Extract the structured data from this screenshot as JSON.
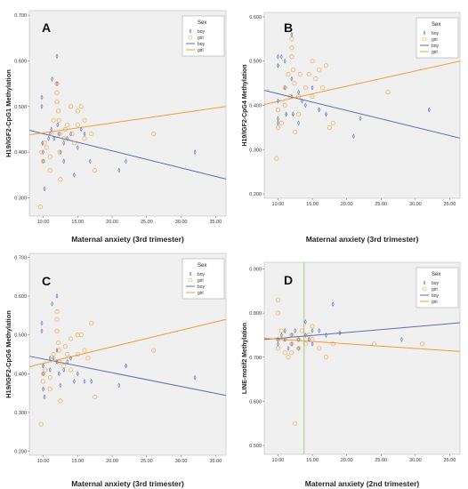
{
  "colors": {
    "boy": "#5a6fb0",
    "girl": "#f39c3a",
    "reference_line": "#8fd16b",
    "plot_background": "#f0f0f0"
  },
  "legend": {
    "title": "Sex",
    "entries": [
      {
        "label": "boy",
        "kind": "marker",
        "series": "boy"
      },
      {
        "label": "girl",
        "kind": "marker",
        "series": "girl"
      },
      {
        "label": "boy",
        "kind": "line",
        "series": "boy"
      },
      {
        "label": "girl",
        "kind": "line",
        "series": "girl"
      }
    ]
  },
  "chart_data": [
    {
      "type": "scatter",
      "panel": "A",
      "ylabel": "H19/IGF2-CpG1 Methylation",
      "xlabel": "Maternal anxiety (3rd trimester)",
      "xlim": [
        8.0,
        36.5
      ],
      "ylim": [
        0.26,
        0.71
      ],
      "xticks": [
        "10.00",
        "15.00",
        "20.00",
        "25.00",
        "30.00",
        "35.00"
      ],
      "yticks": [
        "0.300",
        "0.400",
        "0.500",
        "0.600",
        "0.700"
      ],
      "legend_position": "top-right",
      "series": [
        {
          "name": "boy",
          "points": [
            [
              9.8,
              0.52
            ],
            [
              9.8,
              0.5
            ],
            [
              9.9,
              0.42
            ],
            [
              10,
              0.4
            ],
            [
              10,
              0.38
            ],
            [
              10.2,
              0.32
            ],
            [
              10.8,
              0.43
            ],
            [
              11,
              0.44
            ],
            [
              11.2,
              0.45
            ],
            [
              11.3,
              0.56
            ],
            [
              11.6,
              0.43
            ],
            [
              12,
              0.61
            ],
            [
              12,
              0.55
            ],
            [
              12.1,
              0.46
            ],
            [
              12.3,
              0.44
            ],
            [
              12.5,
              0.4
            ],
            [
              13,
              0.42
            ],
            [
              13,
              0.38
            ],
            [
              13.5,
              0.43
            ],
            [
              14,
              0.44
            ],
            [
              14.5,
              0.35
            ],
            [
              15,
              0.41
            ],
            [
              15.5,
              0.45
            ],
            [
              16,
              0.44
            ],
            [
              16.8,
              0.38
            ],
            [
              21,
              0.36
            ],
            [
              22,
              0.38
            ],
            [
              32,
              0.4
            ]
          ],
          "fit": {
            "x": [
              8.0,
              36.5
            ],
            "y": [
              0.448,
              0.341
            ]
          }
        },
        {
          "name": "girl",
          "points": [
            [
              9.6,
              0.28
            ],
            [
              9.8,
              0.4
            ],
            [
              10,
              0.38
            ],
            [
              10.2,
              0.42
            ],
            [
              10.5,
              0.41
            ],
            [
              11,
              0.39
            ],
            [
              11,
              0.36
            ],
            [
              11.2,
              0.44
            ],
            [
              11.5,
              0.47
            ],
            [
              12,
              0.55
            ],
            [
              12,
              0.53
            ],
            [
              12,
              0.51
            ],
            [
              12.2,
              0.49
            ],
            [
              12.3,
              0.47
            ],
            [
              12.4,
              0.44
            ],
            [
              12.4,
              0.4
            ],
            [
              12.5,
              0.34
            ],
            [
              13,
              0.43
            ],
            [
              13.2,
              0.45
            ],
            [
              13.5,
              0.46
            ],
            [
              14,
              0.5
            ],
            [
              14.2,
              0.44
            ],
            [
              14.5,
              0.42
            ],
            [
              15,
              0.49
            ],
            [
              15,
              0.46
            ],
            [
              15.5,
              0.5
            ],
            [
              16,
              0.47
            ],
            [
              16,
              0.43
            ],
            [
              17,
              0.44
            ],
            [
              17.5,
              0.36
            ],
            [
              26,
              0.44
            ]
          ],
          "fit": {
            "x": [
              8.0,
              36.5
            ],
            "y": [
              0.438,
              0.5
            ]
          }
        }
      ]
    },
    {
      "type": "scatter",
      "panel": "B",
      "ylabel": "H19/IGF2-CpG4 Methylation",
      "xlabel": "Maternal anxiety (3rd trimester)",
      "xlim": [
        8.0,
        36.5
      ],
      "ylim": [
        0.19,
        0.61
      ],
      "xticks": [
        "10.00",
        "15.00",
        "20.00",
        "25.00",
        "30.00",
        "35.00"
      ],
      "yticks": [
        "0.200",
        "0.300",
        "0.400",
        "0.500",
        "0.600"
      ],
      "legend_position": "top-right",
      "series": [
        {
          "name": "boy",
          "points": [
            [
              10,
              0.51
            ],
            [
              10,
              0.49
            ],
            [
              10,
              0.41
            ],
            [
              10,
              0.37
            ],
            [
              10,
              0.36
            ],
            [
              10.5,
              0.51
            ],
            [
              11,
              0.5
            ],
            [
              11,
              0.44
            ],
            [
              11.2,
              0.38
            ],
            [
              12,
              0.56
            ],
            [
              12,
              0.46
            ],
            [
              12,
              0.42
            ],
            [
              12.2,
              0.38
            ],
            [
              13,
              0.43
            ],
            [
              13,
              0.36
            ],
            [
              13.5,
              0.41
            ],
            [
              14,
              0.4
            ],
            [
              15,
              0.44
            ],
            [
              16,
              0.39
            ],
            [
              17,
              0.38
            ],
            [
              21,
              0.33
            ],
            [
              22,
              0.37
            ],
            [
              32,
              0.39
            ]
          ],
          "fit": {
            "x": [
              8.0,
              36.5
            ],
            "y": [
              0.434,
              0.326
            ]
          }
        },
        {
          "name": "girl",
          "points": [
            [
              9.8,
              0.28
            ],
            [
              10,
              0.39
            ],
            [
              10,
              0.35
            ],
            [
              10.5,
              0.36
            ],
            [
              11,
              0.4
            ],
            [
              11,
              0.44
            ],
            [
              11.5,
              0.47
            ],
            [
              11.8,
              0.42
            ],
            [
              12,
              0.55
            ],
            [
              12,
              0.53
            ],
            [
              12,
              0.51
            ],
            [
              12.2,
              0.48
            ],
            [
              12.4,
              0.45
            ],
            [
              12.5,
              0.34
            ],
            [
              13,
              0.42
            ],
            [
              13,
              0.38
            ],
            [
              13.2,
              0.47
            ],
            [
              14,
              0.44
            ],
            [
              14.5,
              0.47
            ],
            [
              15,
              0.5
            ],
            [
              15,
              0.42
            ],
            [
              15.5,
              0.46
            ],
            [
              16,
              0.48
            ],
            [
              16.5,
              0.44
            ],
            [
              17,
              0.49
            ],
            [
              17.5,
              0.35
            ],
            [
              18,
              0.36
            ],
            [
              26,
              0.43
            ]
          ],
          "fit": {
            "x": [
              8.0,
              36.5
            ],
            "y": [
              0.402,
              0.5
            ]
          }
        }
      ]
    },
    {
      "type": "scatter",
      "panel": "C",
      "ylabel": "H19/IGF2-CpG6 Methylation",
      "xlabel": "Maternal anxiety (3rd trimester)",
      "xlim": [
        8.0,
        36.5
      ],
      "ylim": [
        0.19,
        0.71
      ],
      "xticks": [
        "10.00",
        "15.00",
        "20.00",
        "25.00",
        "30.00",
        "35.00"
      ],
      "yticks": [
        "0.200",
        "0.300",
        "0.400",
        "0.500",
        "0.600",
        "0.700"
      ],
      "legend_position": "top-right",
      "series": [
        {
          "name": "boy",
          "points": [
            [
              9.8,
              0.53
            ],
            [
              9.8,
              0.51
            ],
            [
              10,
              0.42
            ],
            [
              10,
              0.4
            ],
            [
              10,
              0.36
            ],
            [
              10.2,
              0.34
            ],
            [
              11,
              0.44
            ],
            [
              11,
              0.41
            ],
            [
              11.3,
              0.58
            ],
            [
              11.5,
              0.44
            ],
            [
              12,
              0.6
            ],
            [
              12,
              0.46
            ],
            [
              12,
              0.43
            ],
            [
              12.3,
              0.4
            ],
            [
              12.5,
              0.37
            ],
            [
              13,
              0.41
            ],
            [
              13.5,
              0.43
            ],
            [
              14,
              0.44
            ],
            [
              14.5,
              0.38
            ],
            [
              15,
              0.4
            ],
            [
              16,
              0.38
            ],
            [
              17,
              0.38
            ],
            [
              21,
              0.37
            ],
            [
              22,
              0.42
            ],
            [
              32,
              0.39
            ]
          ],
          "fit": {
            "x": [
              8.0,
              36.5
            ],
            "y": [
              0.445,
              0.344
            ]
          }
        },
        {
          "name": "girl",
          "points": [
            [
              9.7,
              0.27
            ],
            [
              10,
              0.4
            ],
            [
              10,
              0.38
            ],
            [
              10.3,
              0.41
            ],
            [
              11,
              0.39
            ],
            [
              11,
              0.36
            ],
            [
              11.5,
              0.45
            ],
            [
              12,
              0.56
            ],
            [
              12,
              0.54
            ],
            [
              12,
              0.51
            ],
            [
              12.2,
              0.48
            ],
            [
              12.3,
              0.46
            ],
            [
              12.4,
              0.43
            ],
            [
              12.5,
              0.33
            ],
            [
              13,
              0.42
            ],
            [
              13.2,
              0.47
            ],
            [
              13.5,
              0.45
            ],
            [
              14,
              0.49
            ],
            [
              14,
              0.41
            ],
            [
              15,
              0.5
            ],
            [
              15,
              0.45
            ],
            [
              15.5,
              0.5
            ],
            [
              16,
              0.46
            ],
            [
              16.5,
              0.44
            ],
            [
              17,
              0.53
            ],
            [
              17.5,
              0.34
            ],
            [
              26,
              0.46
            ]
          ],
          "fit": {
            "x": [
              8.0,
              36.5
            ],
            "y": [
              0.418,
              0.54
            ]
          }
        }
      ]
    },
    {
      "type": "scatter",
      "panel": "D",
      "ylabel": "LINE-motif2 Methylation",
      "xlabel": "Maternal anxiety (2nd trimester)",
      "xlim": [
        8.0,
        36.5
      ],
      "ylim": [
        0.48,
        0.915
      ],
      "xticks": [
        "10.00",
        "15.00",
        "20.00",
        "25.00",
        "30.00",
        "35.00"
      ],
      "yticks": [
        "0.500",
        "0.600",
        "0.700",
        "0.800",
        "0.900"
      ],
      "legend_position": "top-right",
      "reference_line_x": 13.8,
      "series": [
        {
          "name": "boy",
          "points": [
            [
              10,
              0.74
            ],
            [
              10,
              0.73
            ],
            [
              10.5,
              0.75
            ],
            [
              11,
              0.76
            ],
            [
              11,
              0.74
            ],
            [
              11.5,
              0.72
            ],
            [
              12,
              0.75
            ],
            [
              12,
              0.73
            ],
            [
              12.5,
              0.76
            ],
            [
              13,
              0.74
            ],
            [
              13,
              0.72
            ],
            [
              14,
              0.75
            ],
            [
              14,
              0.78
            ],
            [
              14.5,
              0.74
            ],
            [
              15,
              0.76
            ],
            [
              15,
              0.73
            ],
            [
              16,
              0.76
            ],
            [
              17,
              0.75
            ],
            [
              18,
              0.82
            ],
            [
              19,
              0.755
            ],
            [
              28,
              0.74
            ]
          ],
          "fit": {
            "x": [
              8.0,
              36.5
            ],
            "y": [
              0.74,
              0.778
            ]
          }
        },
        {
          "name": "girl",
          "points": [
            [
              10,
              0.83
            ],
            [
              10,
              0.8
            ],
            [
              10,
              0.74
            ],
            [
              10,
              0.72
            ],
            [
              10.5,
              0.76
            ],
            [
              11,
              0.74
            ],
            [
              11,
              0.71
            ],
            [
              11.5,
              0.7
            ],
            [
              12,
              0.75
            ],
            [
              12,
              0.73
            ],
            [
              12,
              0.71
            ],
            [
              12.5,
              0.55
            ],
            [
              13,
              0.74
            ],
            [
              13,
              0.72
            ],
            [
              13.5,
              0.76
            ],
            [
              14,
              0.73
            ],
            [
              14.5,
              0.75
            ],
            [
              15,
              0.74
            ],
            [
              15,
              0.77
            ],
            [
              16,
              0.72
            ],
            [
              17,
              0.7
            ],
            [
              18,
              0.73
            ],
            [
              24,
              0.73
            ],
            [
              31,
              0.73
            ]
          ],
          "fit": {
            "x": [
              8.0,
              36.5
            ],
            "y": [
              0.743,
              0.713
            ]
          }
        }
      ]
    }
  ]
}
